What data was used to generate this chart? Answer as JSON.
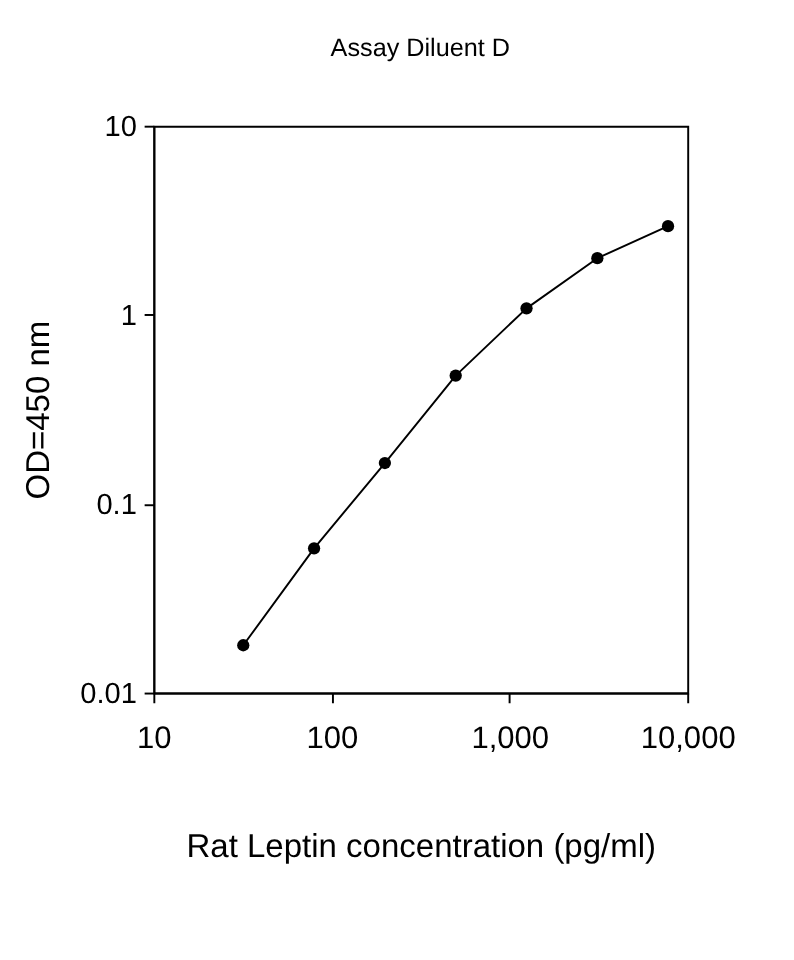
{
  "chart_data": {
    "type": "line",
    "title": "Assay Diluent D",
    "xlabel": "Rat Leptin concentration (pg/ml)",
    "ylabel": "OD=450 nm",
    "x": [
      32,
      80,
      200,
      500,
      1250,
      3125,
      7800
    ],
    "series": [
      {
        "color": "#000000",
        "values": [
          0.0178,
          0.058,
          0.164,
          0.476,
          1.08,
          1.99,
          2.94
        ]
      }
    ],
    "log": "xy",
    "xlim": [
      10,
      10000
    ],
    "ylim": [
      0.01,
      10
    ],
    "xticks": [
      10,
      100,
      {
        "value": 1000,
        "label": "1,000"
      },
      {
        "value": 10000,
        "label": "10,000"
      }
    ],
    "yticks": [
      0.01,
      0.1,
      1,
      10
    ],
    "grid": false,
    "marker": "circle",
    "line_style": "solid"
  }
}
